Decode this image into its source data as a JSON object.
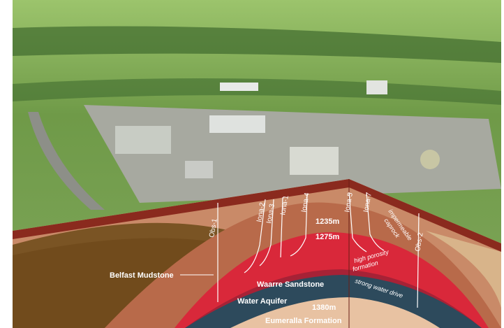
{
  "wells": [
    "Obs-1",
    "Iona-2",
    "Iona-3",
    "Iona-1",
    "Iona-4",
    "Iona-5",
    "Iona-7",
    "Obs-2"
  ],
  "depths": {
    "top": "1235m",
    "contact": "1275m",
    "base": "1380m"
  },
  "layers": {
    "mudstone": "Belfast Mudstone",
    "sandstone": "Waarre Sandstone",
    "aquifer": "Water Aquifer",
    "basement": "Eumeralla Formation"
  },
  "annotations": {
    "caprock": [
      "impermeable",
      "caprock"
    ],
    "porosity": [
      "high porosity",
      "formation"
    ],
    "drive": "strong water drive"
  }
}
